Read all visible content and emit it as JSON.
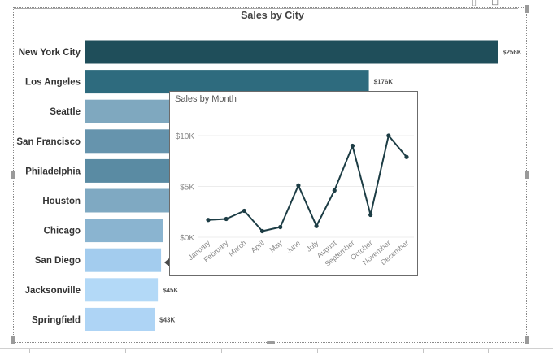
{
  "chart_data": [
    {
      "type": "bar",
      "orientation": "horizontal",
      "title": "Sales by City",
      "categories": [
        "New York City",
        "Los Angeles",
        "Seattle",
        "San Francisco",
        "Philadelphia",
        "Houston",
        "Chicago",
        "San Diego",
        "Jacksonville",
        "Springfield"
      ],
      "values": [
        256000,
        176000,
        95000,
        92000,
        88000,
        83000,
        48000,
        47000,
        45000,
        43000
      ],
      "data_labels": [
        "$256K",
        "$176K",
        "",
        "",
        "",
        "",
        "",
        "",
        "$45K",
        "$43K"
      ],
      "colors": [
        "#1f4e5a",
        "#2e6b7e",
        "#7fa8bf",
        "#6694ad",
        "#5a8ba3",
        "#7fa9c2",
        "#8ab4d0",
        "#a3ccee",
        "#b3d9f7",
        "#aed4f5"
      ],
      "grid": false,
      "legend": "none"
    },
    {
      "type": "line",
      "title": "Sales by Month",
      "x": [
        "January",
        "February",
        "March",
        "April",
        "May",
        "June",
        "July",
        "August",
        "September",
        "October",
        "November",
        "December"
      ],
      "series": [
        {
          "values": [
            1700,
            1800,
            2600,
            600,
            1000,
            5100,
            1100,
            4600,
            9000,
            2200,
            10000,
            7900
          ]
        }
      ],
      "ylim": [
        0,
        10000
      ],
      "y_ticks": [
        "$0K",
        "$5K",
        "$10K"
      ],
      "y_tick_values": [
        0,
        5000,
        10000
      ],
      "line_color": "#1d3d45",
      "grid": true,
      "legend": "none"
    }
  ]
}
